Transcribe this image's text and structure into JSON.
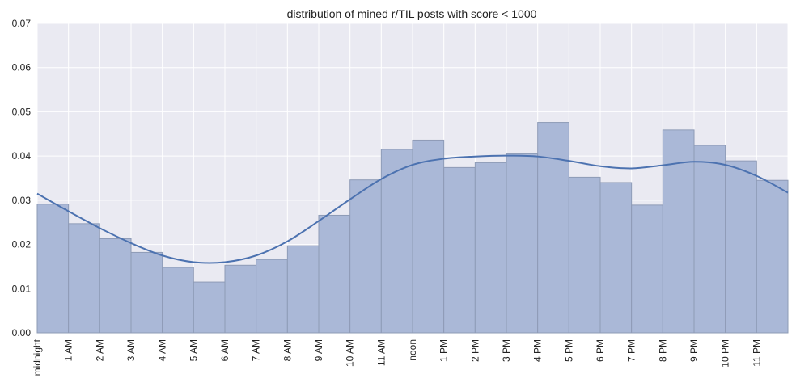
{
  "chart_data": {
    "type": "bar",
    "title": "distribution of mined r/TIL posts with score < 1000",
    "xlabel": "",
    "ylabel": "",
    "ylim": [
      0,
      0.07
    ],
    "yticks": [
      "0.00",
      "0.01",
      "0.02",
      "0.03",
      "0.04",
      "0.05",
      "0.06",
      "0.07"
    ],
    "categories": [
      "midnight",
      "1 AM",
      "2 AM",
      "3 AM",
      "4 AM",
      "5 AM",
      "6 AM",
      "7 AM",
      "8 AM",
      "9 AM",
      "10 AM",
      "11 AM",
      "noon",
      "1 PM",
      "2 PM",
      "3 PM",
      "4 PM",
      "5 PM",
      "6 PM",
      "7 PM",
      "8 PM",
      "9 PM",
      "10 PM",
      "11 PM"
    ],
    "values": [
      0.0291,
      0.0247,
      0.0213,
      0.0182,
      0.0148,
      0.0115,
      0.0153,
      0.0166,
      0.0197,
      0.0266,
      0.0346,
      0.0415,
      0.0436,
      0.0374,
      0.0385,
      0.0405,
      0.0476,
      0.0352,
      0.034,
      0.0289,
      0.0459,
      0.0424,
      0.0389,
      0.0345
    ],
    "kde": {
      "x": [
        0,
        1,
        2,
        3,
        4,
        5,
        6,
        7,
        8,
        9,
        10,
        11,
        12,
        13,
        14,
        15,
        16,
        17,
        18,
        19,
        20,
        21,
        22,
        23,
        24
      ],
      "y": [
        0.0315,
        0.0275,
        0.0237,
        0.0203,
        0.0175,
        0.016,
        0.016,
        0.0175,
        0.0207,
        0.0253,
        0.0302,
        0.0348,
        0.038,
        0.0394,
        0.0399,
        0.0401,
        0.0399,
        0.0389,
        0.0377,
        0.0372,
        0.0379,
        0.0387,
        0.038,
        0.0355,
        0.0317
      ]
    },
    "grid": true,
    "colors": {
      "background": "#eaeaf2",
      "grid": "#ffffff",
      "bar_fill": "#aab8d7",
      "bar_edge": "#8e9bb6",
      "kde_line": "#4c72b0"
    }
  }
}
